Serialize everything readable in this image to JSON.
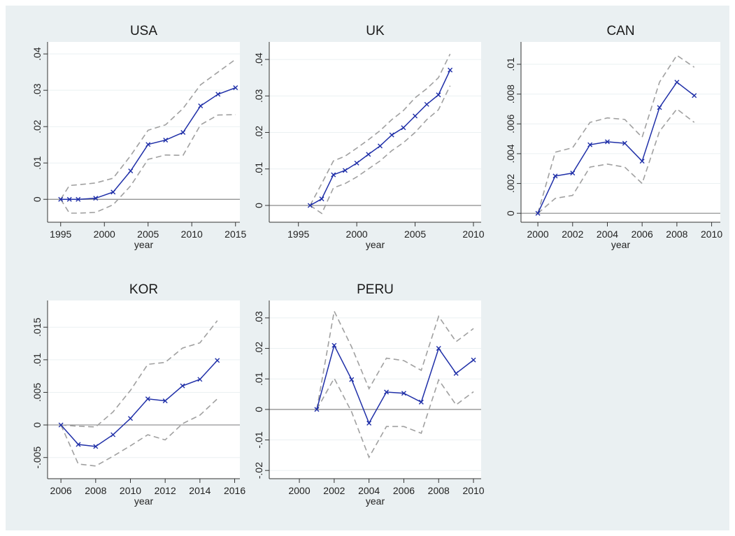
{
  "chart_data": [
    {
      "type": "line",
      "title": "USA",
      "xlabel": "year",
      "x": [
        1995,
        1996,
        1997,
        1999,
        2001,
        2003,
        2005,
        2007,
        2009,
        2011,
        2013,
        2015
      ],
      "xlim": [
        1993.5,
        2015.5
      ],
      "ylim": [
        -0.0063,
        0.0433
      ],
      "xticks": [
        1995,
        2000,
        2005,
        2010,
        2015
      ],
      "yticks": [
        0,
        {
          "value": 0.01,
          "label": ".01"
        },
        {
          "value": 0.02,
          "label": ".02"
        },
        {
          "value": 0.03,
          "label": ".03"
        },
        {
          "value": 0.04,
          "label": ".04"
        }
      ],
      "yline": 0,
      "grid": true,
      "series": [
        {
          "color": "#1f2fa8",
          "marker": "x",
          "values": [
            0,
            0,
            0,
            0.0003,
            0.002,
            0.0078,
            0.0151,
            0.0163,
            0.0184,
            0.0257,
            0.0289,
            0.0307
          ]
        },
        {
          "color": "#a0a0a0",
          "dashed": true,
          "values": [
            0,
            0.0038,
            0.004,
            0.0045,
            0.0058,
            0.012,
            0.019,
            0.0205,
            0.025,
            0.0315,
            0.035,
            0.0385
          ]
        },
        {
          "color": "#a0a0a0",
          "dashed": true,
          "values": [
            0,
            -0.0038,
            -0.0038,
            -0.0036,
            -0.0015,
            0.0037,
            0.011,
            0.0122,
            0.0121,
            0.0205,
            0.0232,
            0.0233
          ]
        }
      ]
    },
    {
      "type": "line",
      "title": "UK",
      "xlabel": "year",
      "x": [
        1996,
        1997,
        1998,
        1999,
        2000,
        2001,
        2002,
        2003,
        2004,
        2005,
        2006,
        2007,
        2008
      ],
      "xlim": [
        1992.5,
        2010.66
      ],
      "ylim": [
        -0.0046,
        0.0448
      ],
      "xticks": [
        1995,
        2000,
        2005,
        2010
      ],
      "yticks": [
        0,
        {
          "value": 0.01,
          "label": ".01"
        },
        {
          "value": 0.02,
          "label": ".02"
        },
        {
          "value": 0.03,
          "label": ".03"
        },
        {
          "value": 0.04,
          "label": ".04"
        }
      ],
      "yline": 0,
      "grid": true,
      "series": [
        {
          "color": "#1f2fa8",
          "marker": "x",
          "values": [
            0,
            0.0018,
            0.0084,
            0.0096,
            0.0116,
            0.014,
            0.0163,
            0.0193,
            0.0213,
            0.0245,
            0.0277,
            0.0303,
            0.0371
          ]
        },
        {
          "color": "#a0a0a0",
          "dashed": true,
          "values": [
            0,
            0.006,
            0.0122,
            0.0135,
            0.0157,
            0.018,
            0.0205,
            0.0235,
            0.026,
            0.0295,
            0.032,
            0.035,
            0.0415
          ]
        },
        {
          "color": "#a0a0a0",
          "dashed": true,
          "values": [
            0,
            -0.0022,
            0.0048,
            0.006,
            0.0078,
            0.01,
            0.0122,
            0.015,
            0.0172,
            0.02,
            0.0235,
            0.0262,
            0.0328
          ]
        }
      ]
    },
    {
      "type": "line",
      "title": "CAN",
      "xlabel": "year",
      "x": [
        2000,
        2001,
        2002,
        2003,
        2004,
        2005,
        2006,
        2007,
        2008,
        2009
      ],
      "xlim": [
        1999.03,
        2010.5
      ],
      "ylim": [
        -0.0006,
        0.0115
      ],
      "xticks": [
        2000,
        2002,
        2004,
        2006,
        2008,
        2010
      ],
      "yticks": [
        0,
        {
          "value": 0.002,
          "label": ".002"
        },
        {
          "value": 0.004,
          "label": ".004"
        },
        {
          "value": 0.006,
          "label": ".006"
        },
        {
          "value": 0.008,
          "label": ".008"
        },
        {
          "value": 0.01,
          "label": ".01"
        }
      ],
      "yline": 0,
      "grid": true,
      "series": [
        {
          "color": "#1f2fa8",
          "marker": "x",
          "values": [
            0,
            0.0025,
            0.0027,
            0.0046,
            0.0048,
            0.0047,
            0.0035,
            0.0071,
            0.0088,
            0.0079
          ]
        },
        {
          "color": "#a0a0a0",
          "dashed": true,
          "values": [
            0,
            0.0041,
            0.0044,
            0.0061,
            0.0064,
            0.0063,
            0.0051,
            0.0088,
            0.0106,
            0.0098
          ]
        },
        {
          "color": "#a0a0a0",
          "dashed": true,
          "values": [
            0,
            0.001,
            0.0012,
            0.0031,
            0.0033,
            0.0031,
            0.002,
            0.0055,
            0.007,
            0.0061
          ]
        }
      ]
    },
    {
      "type": "line",
      "title": "KOR",
      "xlabel": "year",
      "x": [
        2006,
        2007,
        2008,
        2009,
        2010,
        2011,
        2012,
        2013,
        2014,
        2015
      ],
      "xlim": [
        2005.23,
        2016.3
      ],
      "ylim": [
        -0.00825,
        0.0191
      ],
      "xticks": [
        2006,
        2008,
        2010,
        2012,
        2014,
        2016
      ],
      "yticks": [
        {
          "value": -0.005,
          "label": "-.005"
        },
        0,
        {
          "value": 0.005,
          "label": ".005"
        },
        {
          "value": 0.01,
          "label": ".01"
        },
        {
          "value": 0.015,
          "label": ".015"
        }
      ],
      "yline": 0,
      "grid": true,
      "series": [
        {
          "color": "#1f2fa8",
          "marker": "x",
          "values": [
            0,
            -0.003,
            -0.0033,
            -0.0015,
            0.001,
            0.004,
            0.0037,
            0.006,
            0.007,
            0.0099
          ]
        },
        {
          "color": "#a0a0a0",
          "dashed": true,
          "values": [
            0,
            -0.0002,
            -0.0003,
            0.002,
            0.0053,
            0.0093,
            0.0096,
            0.0118,
            0.0126,
            0.016
          ]
        },
        {
          "color": "#a0a0a0",
          "dashed": true,
          "values": [
            0,
            -0.006,
            -0.0063,
            -0.0048,
            -0.0032,
            -0.0015,
            -0.0023,
            0.0002,
            0.0015,
            0.004
          ]
        }
      ]
    },
    {
      "type": "line",
      "title": "PERU",
      "xlabel": "year",
      "x": [
        2001,
        2002,
        2003,
        2004,
        2005,
        2006,
        2007,
        2008,
        2009,
        2010
      ],
      "xlim": [
        1998.27,
        2010.44
      ],
      "ylim": [
        -0.0227,
        0.0357
      ],
      "xticks": [
        2000,
        2002,
        2004,
        2006,
        2008,
        2010
      ],
      "yticks": [
        {
          "value": -0.02,
          "label": "-.02"
        },
        {
          "value": -0.01,
          "label": "-.01"
        },
        0,
        {
          "value": 0.01,
          "label": ".01"
        },
        {
          "value": 0.02,
          "label": ".02"
        },
        {
          "value": 0.03,
          "label": ".03"
        }
      ],
      "yline": 0,
      "grid": true,
      "series": [
        {
          "color": "#1f2fa8",
          "marker": "x",
          "values": [
            0,
            0.021,
            0.0098,
            -0.0045,
            0.0057,
            0.0053,
            0.0024,
            0.02,
            0.0118,
            0.0162
          ]
        },
        {
          "color": "#a0a0a0",
          "dashed": true,
          "values": [
            0,
            0.0322,
            0.0205,
            0.0068,
            0.0168,
            0.016,
            0.0128,
            0.0305,
            0.0222,
            0.0265
          ]
        },
        {
          "color": "#a0a0a0",
          "dashed": true,
          "values": [
            0,
            0.0102,
            -0.0008,
            -0.0157,
            -0.0056,
            -0.0056,
            -0.0078,
            0.0097,
            0.0015,
            0.0058
          ]
        }
      ]
    }
  ]
}
